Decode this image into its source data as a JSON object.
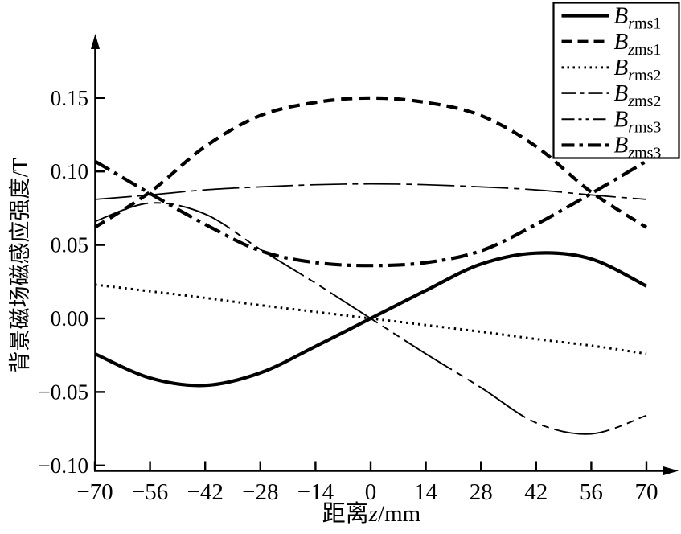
{
  "chart_data": {
    "type": "line",
    "title": "",
    "xlabel": {
      "prefix": "距离",
      "italic": "z",
      "suffix": "/mm"
    },
    "ylabel": "背景磁场磁感应强度/T",
    "xlim": [
      -70,
      70
    ],
    "ylim": [
      -0.1,
      0.17
    ],
    "grid": false,
    "legend_position": "top-right",
    "axis_color": "#000000",
    "x": [
      -70,
      -56,
      -42,
      -28,
      -14,
      0,
      14,
      28,
      42,
      56,
      70
    ],
    "xticks": [
      -70,
      -56,
      -42,
      -28,
      -14,
      0,
      14,
      28,
      42,
      56,
      70
    ],
    "xtick_labels": [
      "−70",
      "−56",
      "−42",
      "−28",
      "−14",
      "0",
      "14",
      "28",
      "42",
      "56",
      "70"
    ],
    "yticks": [
      0.15,
      0.1,
      0.05,
      0.0,
      -0.05,
      -0.1
    ],
    "ytick_labels": [
      "0.15",
      "0.10",
      "0.05",
      "0.00",
      "−0.05",
      "−0.10"
    ],
    "series": [
      {
        "id": "Brms1",
        "label": {
          "main": "B",
          "sub_italic": "r",
          "sub_roman": "ms1"
        },
        "line_style": "solid-thick",
        "color": "#000000",
        "values": [
          -0.024,
          -0.0405,
          -0.0455,
          -0.037,
          -0.019,
          0.0,
          0.019,
          0.037,
          0.0445,
          0.0405,
          0.022
        ]
      },
      {
        "id": "Bzms1",
        "label": {
          "main": "B",
          "sub_italic": "z",
          "sub_roman": "ms1"
        },
        "line_style": "dashed-thick",
        "color": "#000000",
        "values": [
          0.062,
          0.086,
          0.117,
          0.138,
          0.147,
          0.15,
          0.147,
          0.138,
          0.117,
          0.086,
          0.062
        ]
      },
      {
        "id": "Brms2",
        "label": {
          "main": "B",
          "sub_italic": "r",
          "sub_roman": "ms2"
        },
        "line_style": "dotted",
        "color": "#000000",
        "values": [
          0.023,
          0.0185,
          0.014,
          0.009,
          0.0045,
          0.0,
          -0.0045,
          -0.009,
          -0.014,
          -0.0185,
          -0.024
        ]
      },
      {
        "id": "Bzms2",
        "label": {
          "main": "B",
          "sub_italic": "z",
          "sub_roman": "ms2"
        },
        "line_style": "dashdot-thin",
        "color": "#000000",
        "values": [
          0.081,
          0.084,
          0.0875,
          0.0895,
          0.091,
          0.0915,
          0.091,
          0.0895,
          0.0875,
          0.084,
          0.081
        ]
      },
      {
        "id": "Brms3",
        "label": {
          "main": "B",
          "sub_italic": "r",
          "sub_roman": "ms3"
        },
        "line_style": "dashdotdot-thin",
        "color": "#000000",
        "values": [
          0.066,
          0.0785,
          0.071,
          0.047,
          0.024,
          0.0,
          -0.024,
          -0.047,
          -0.071,
          -0.0785,
          -0.066
        ]
      },
      {
        "id": "Bzms3",
        "label": {
          "main": "B",
          "sub_italic": "z",
          "sub_roman": "ms3"
        },
        "line_style": "dashdot-thick",
        "color": "#000000",
        "values": [
          0.107,
          0.085,
          0.064,
          0.046,
          0.038,
          0.036,
          0.038,
          0.046,
          0.064,
          0.085,
          0.107
        ]
      }
    ]
  }
}
